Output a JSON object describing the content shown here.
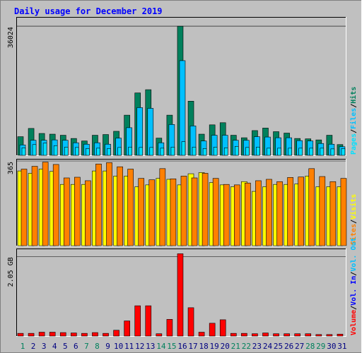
{
  "title": "Daily usage for December 2019",
  "chart_data": [
    {
      "type": "bar",
      "name": "hits-files-pages",
      "y_tick_label": "36024",
      "ylim": [
        0,
        38000
      ],
      "y_tick": 36024,
      "legend_right": [
        "Pages",
        "Files",
        "Hits"
      ],
      "legend_separators": [
        "/",
        "/"
      ],
      "categories": [
        "1",
        "2",
        "3",
        "4",
        "5",
        "6",
        "7",
        "8",
        "9",
        "10",
        "11",
        "12",
        "13",
        "14",
        "15",
        "16",
        "17",
        "18",
        "19",
        "20",
        "21",
        "22",
        "23",
        "24",
        "25",
        "26",
        "27",
        "28",
        "29",
        "30",
        "31"
      ],
      "series": [
        {
          "name": "Hits",
          "values": [
            5200,
            7500,
            6100,
            5900,
            5600,
            4700,
            4000,
            5600,
            5800,
            6700,
            11200,
            17400,
            18300,
            4800,
            11200,
            36000,
            15100,
            5900,
            8500,
            9100,
            5600,
            4900,
            6900,
            7600,
            6600,
            6200,
            4700,
            4600,
            4300,
            5600,
            3000
          ]
        },
        {
          "name": "Files",
          "values": [
            2900,
            4200,
            4200,
            4300,
            4200,
            3500,
            3100,
            3500,
            3100,
            4800,
            7700,
            13300,
            13100,
            3500,
            8600,
            26400,
            8200,
            4000,
            5600,
            5600,
            4200,
            4200,
            5200,
            5100,
            4900,
            4900,
            4100,
            4000,
            3300,
            3100,
            2400
          ]
        },
        {
          "name": "Pages",
          "values": [
            2100,
            3000,
            3400,
            2700,
            2300,
            2200,
            1900,
            2000,
            1900,
            2200,
            2300,
            2200,
            2200,
            2000,
            2300,
            3800,
            2300,
            1900,
            2300,
            2100,
            2500,
            2200,
            2300,
            2000,
            2000,
            2000,
            2000,
            2000,
            2000,
            1800,
            1900
          ]
        }
      ]
    },
    {
      "type": "bar",
      "name": "visits-sites",
      "y_tick_label": "365",
      "ylim": [
        0,
        365
      ],
      "y_tick": 365,
      "legend_right": [
        "Sites",
        "Visits"
      ],
      "legend_separators": [
        "/"
      ],
      "categories": [
        "1",
        "2",
        "3",
        "4",
        "5",
        "6",
        "7",
        "8",
        "9",
        "10",
        "11",
        "12",
        "13",
        "14",
        "15",
        "16",
        "17",
        "18",
        "19",
        "20",
        "21",
        "22",
        "23",
        "24",
        "25",
        "26",
        "27",
        "28",
        "29",
        "30",
        "31"
      ],
      "series": [
        {
          "name": "Visits",
          "values": [
            322,
            312,
            330,
            320,
            264,
            264,
            264,
            322,
            322,
            300,
            300,
            254,
            262,
            290,
            286,
            262,
            310,
            315,
            272,
            262,
            254,
            276,
            234,
            254,
            264,
            264,
            266,
            300,
            254,
            254,
            254
          ]
        },
        {
          "name": "Sites",
          "values": [
            330,
            342,
            360,
            350,
            292,
            295,
            280,
            352,
            358,
            340,
            330,
            290,
            284,
            332,
            288,
            300,
            292,
            312,
            290,
            264,
            262,
            270,
            280,
            286,
            276,
            294,
            296,
            332,
            298,
            276,
            290
          ]
        }
      ]
    },
    {
      "type": "bar",
      "name": "volume",
      "y_tick_label": "2.05 GB",
      "ylim": [
        0,
        2.2
      ],
      "y_tick": 2.05,
      "legend_right": [
        "Volume",
        "Vol. In",
        "Vol. Out"
      ],
      "legend_separators": [
        "/",
        "/"
      ],
      "categories": [
        "1",
        "2",
        "3",
        "4",
        "5",
        "6",
        "7",
        "8",
        "9",
        "10",
        "11",
        "12",
        "13",
        "14",
        "15",
        "16",
        "17",
        "18",
        "19",
        "20",
        "21",
        "22",
        "23",
        "24",
        "25",
        "26",
        "27",
        "28",
        "29",
        "30",
        "31"
      ],
      "series": [
        {
          "name": "Volume",
          "values": [
            0.07,
            0.07,
            0.1,
            0.1,
            0.09,
            0.08,
            0.07,
            0.09,
            0.07,
            0.15,
            0.39,
            0.78,
            0.78,
            0.06,
            0.43,
            2.12,
            0.73,
            0.1,
            0.33,
            0.42,
            0.07,
            0.07,
            0.06,
            0.08,
            0.06,
            0.06,
            0.06,
            0.06,
            0.04,
            0.04,
            0.05
          ]
        }
      ]
    }
  ],
  "x_labels": [
    "1",
    "2",
    "3",
    "4",
    "5",
    "6",
    "7",
    "8",
    "9",
    "10",
    "11",
    "12",
    "13",
    "14",
    "15",
    "16",
    "17",
    "18",
    "19",
    "20",
    "21",
    "22",
    "23",
    "24",
    "25",
    "26",
    "27",
    "28",
    "29",
    "30",
    "31"
  ],
  "weekend_days": [
    1,
    7,
    8,
    14,
    15,
    21,
    22,
    28,
    29
  ],
  "colors": {
    "hits": "#00805c",
    "files": "#00c0ff",
    "pages": "#00e0ff",
    "visits": "#ffff00",
    "sites": "#ff8000",
    "volume": "#ff0000",
    "vol_in": "#0000ff",
    "vol_out": "#00c0ff",
    "title": "#0000ff",
    "weekday_label": "#000080",
    "weekend_label": "#00805c"
  }
}
